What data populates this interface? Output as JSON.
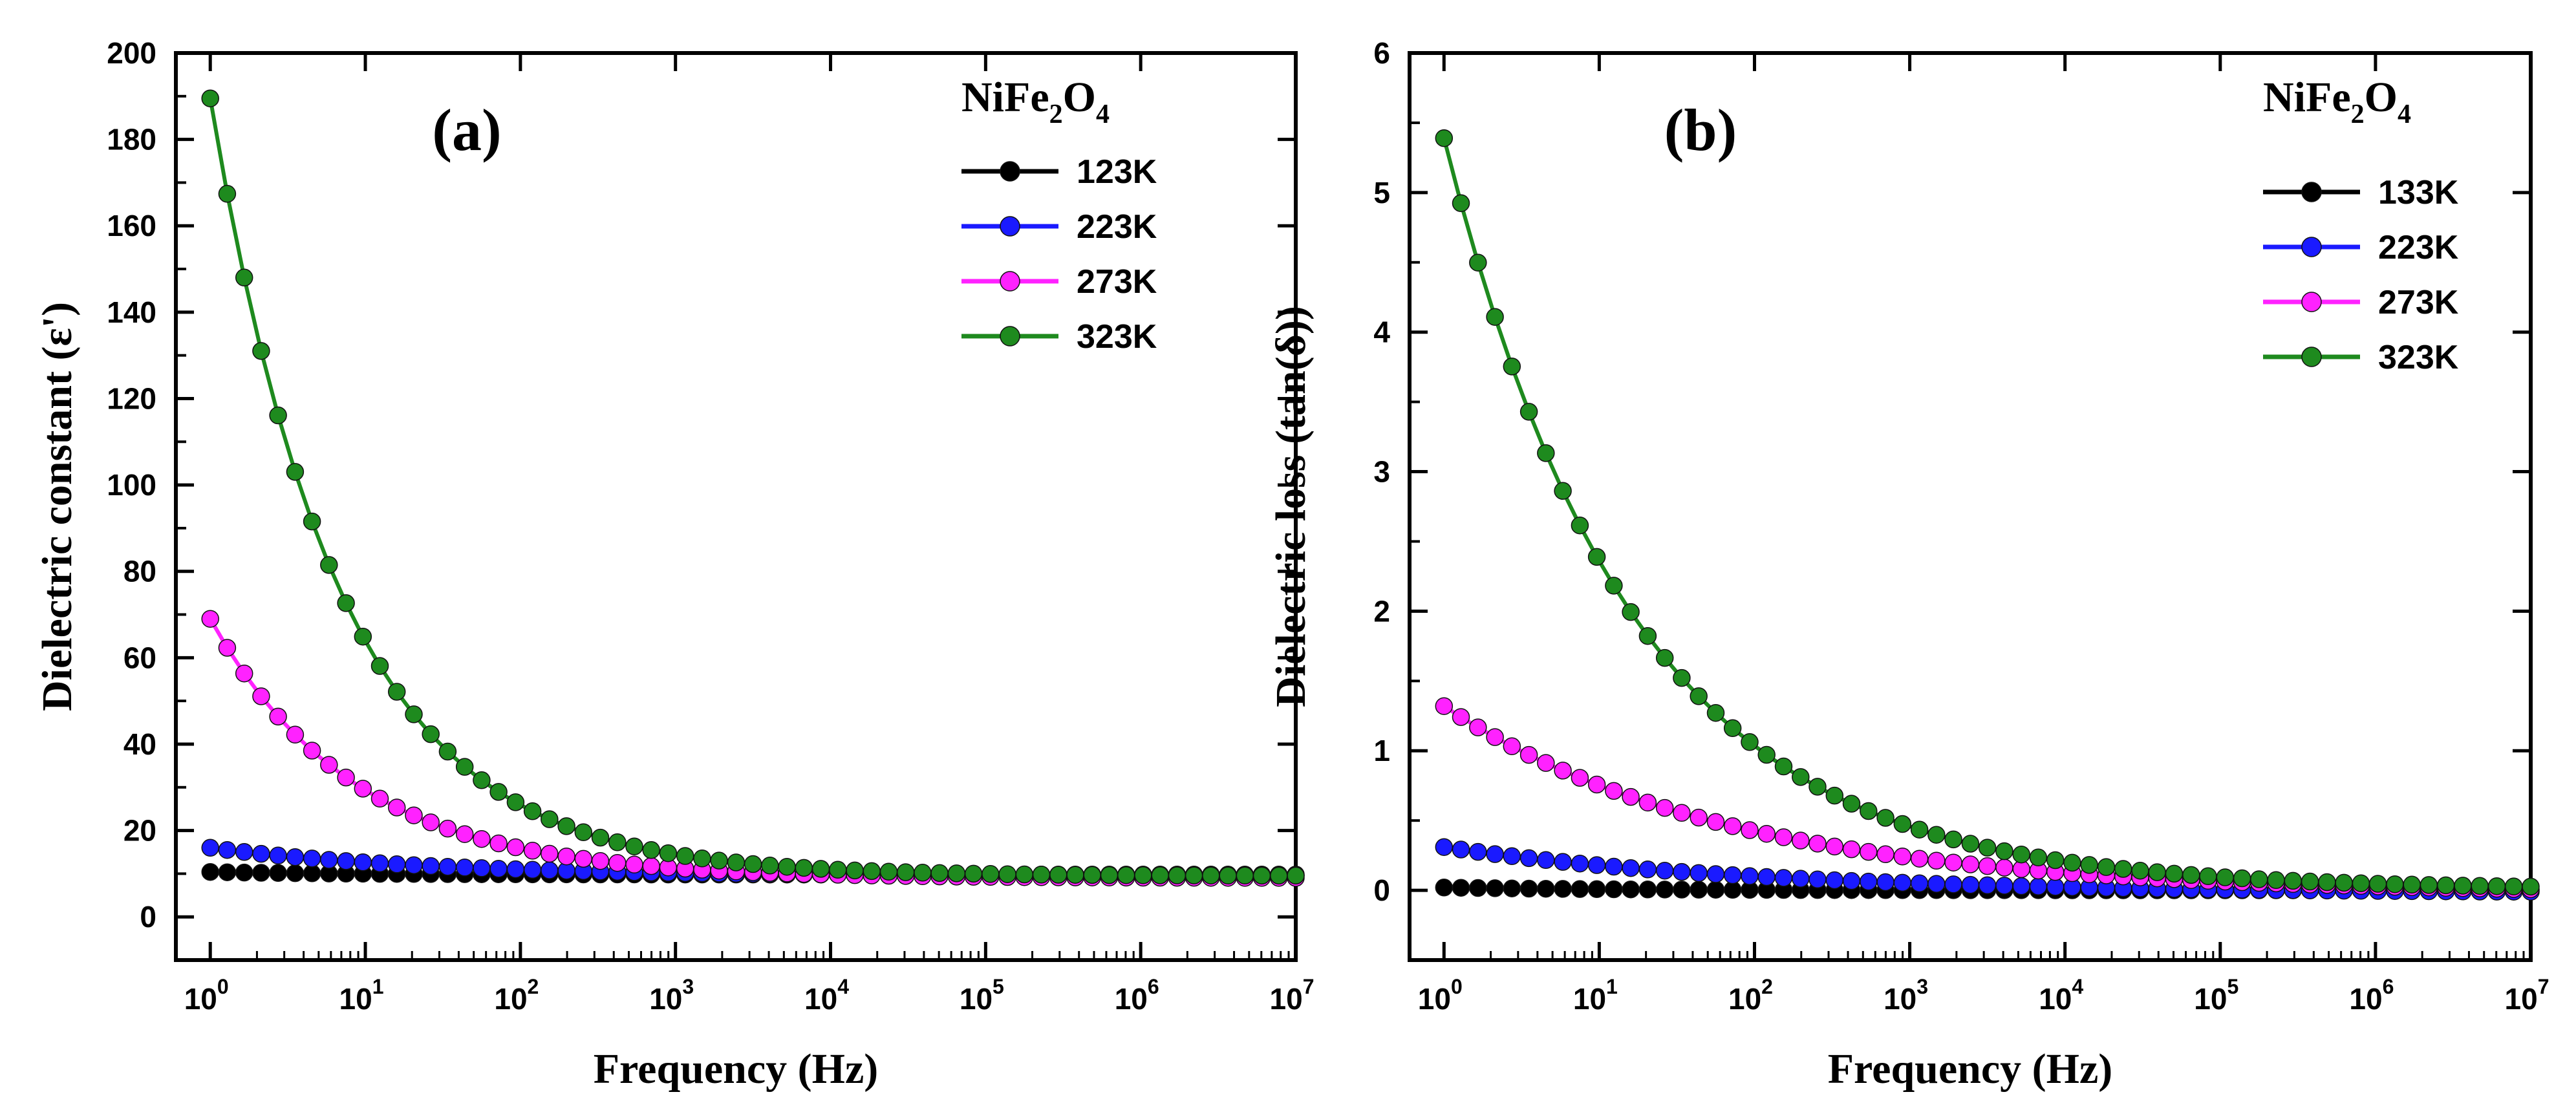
{
  "chart_data": [
    {
      "panel_label": "(a)",
      "type": "line",
      "xscale": "log",
      "xlabel": "Frequency (Hz)",
      "ylabel": "Dielectric constant (ε')",
      "xlim": [
        0.6,
        10000000
      ],
      "ylim": [
        -10,
        200
      ],
      "ytick_labels": [
        "0",
        "20",
        "40",
        "60",
        "80",
        "100",
        "120",
        "140",
        "160",
        "180",
        "200"
      ],
      "xtick_labels": [
        "10",
        "10",
        "10",
        "10",
        "10",
        "10",
        "10",
        "10"
      ],
      "xtick_exponents": [
        "0",
        "1",
        "2",
        "3",
        "4",
        "5",
        "6",
        "7"
      ],
      "legend": {
        "title": "NiFe",
        "title_sub1": "2",
        "title_mid": "O",
        "title_sub2": "4",
        "position": "top-right"
      },
      "series": [
        {
          "name": "123K",
          "color": "#000000",
          "model": {
            "base": 9.8,
            "amp": 0.6,
            "exp": 0.5
          }
        },
        {
          "name": "223K",
          "color": "#1a1aff",
          "model": {
            "base": 9.5,
            "amp": 6.5,
            "exp": 0.32
          }
        },
        {
          "name": "273K",
          "color": "#ff22ff",
          "model": {
            "base": 9.0,
            "amp": 60,
            "exp": 0.47
          }
        },
        {
          "name": "323K",
          "color": "#1e8a1e",
          "model": {
            "base": 9.5,
            "amp": 180,
            "exp": 0.52
          }
        }
      ]
    },
    {
      "panel_label": "(b)",
      "type": "line",
      "xscale": "log",
      "xlabel": "Frequency (Hz)",
      "ylabel": "Dielectric loss (tan(δ))",
      "xlim": [
        0.6,
        10000000
      ],
      "ylim": [
        -0.5,
        6
      ],
      "ytick_labels": [
        "0",
        "1",
        "2",
        "3",
        "4",
        "5",
        "6"
      ],
      "xtick_labels": [
        "10",
        "10",
        "10",
        "10",
        "10",
        "10",
        "10",
        "10"
      ],
      "xtick_exponents": [
        "0",
        "1",
        "2",
        "3",
        "4",
        "5",
        "6",
        "7"
      ],
      "legend": {
        "title": "NiFe",
        "title_sub1": "2",
        "title_mid": "O",
        "title_sub2": "4",
        "position": "top-right"
      },
      "series": [
        {
          "name": "133K",
          "color": "#000000",
          "model": {
            "base": 0.0,
            "amp": 0.02,
            "exp": 0.4
          }
        },
        {
          "name": "223K",
          "color": "#1a1aff",
          "model": {
            "base": -0.02,
            "amp": 0.33,
            "exp": 0.22
          }
        },
        {
          "name": "273K",
          "color": "#ff22ff",
          "model": {
            "base": -0.02,
            "amp": 1.34,
            "exp": 0.24
          }
        },
        {
          "name": "323K",
          "color": "#1e8a1e",
          "model": {
            "base": 0.01,
            "amp": 5.38,
            "exp": 0.36
          }
        }
      ]
    }
  ]
}
